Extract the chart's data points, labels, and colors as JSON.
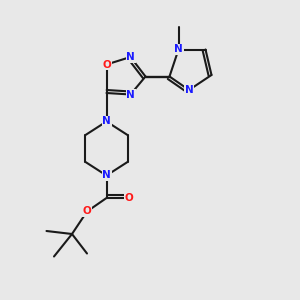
{
  "bg_color": "#e8e8e8",
  "bond_color": "#1a1a1a",
  "atom_colors": {
    "N": "#1a1aff",
    "O": "#ff1a1a",
    "C": "#1a1a1a"
  },
  "font_size": 7.0,
  "lw": 1.5,
  "xlim": [
    0,
    10
  ],
  "ylim": [
    0,
    10
  ]
}
